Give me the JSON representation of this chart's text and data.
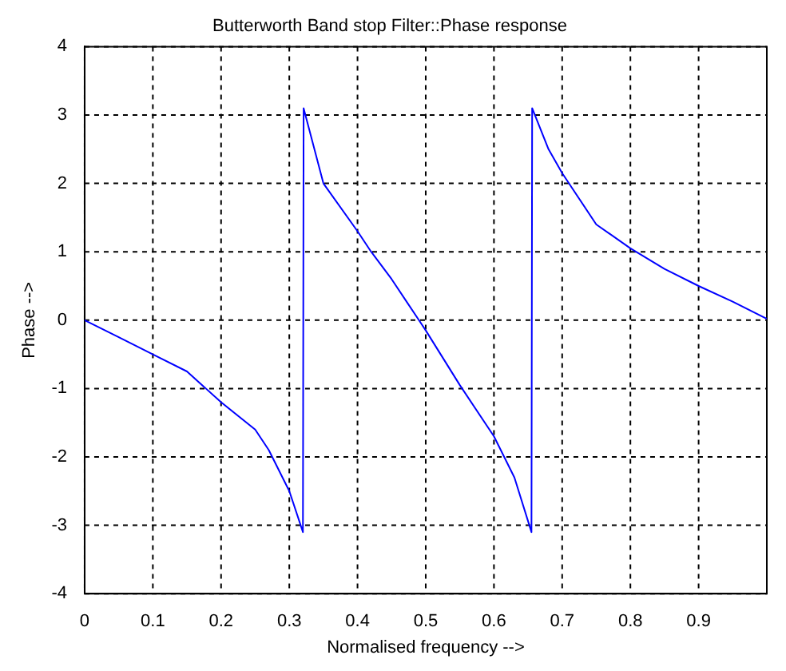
{
  "chart_data": {
    "type": "line",
    "title": "Butterworth Band stop Filter::Phase response",
    "xlabel": "Normalised frequency -->",
    "ylabel": "Phase -->",
    "x": [
      0,
      0.05,
      0.1,
      0.15,
      0.2,
      0.25,
      0.27,
      0.3,
      0.32,
      0.321,
      0.35,
      0.4,
      0.42,
      0.45,
      0.49,
      0.5,
      0.55,
      0.6,
      0.63,
      0.655,
      0.656,
      0.68,
      0.7,
      0.75,
      0.8,
      0.85,
      0.9,
      0.95,
      1
    ],
    "series": [
      {
        "color": "#0000ff",
        "values": [
          0,
          -0.25,
          -0.5,
          -0.75,
          -1.2,
          -1.6,
          -1.9,
          -2.5,
          -3.1,
          3.1,
          2.0,
          1.3,
          1.0,
          0.6,
          0,
          -0.15,
          -0.95,
          -1.7,
          -2.3,
          -3.1,
          3.1,
          2.5,
          2.15,
          1.4,
          1.05,
          0.75,
          0.5,
          0.27,
          0.02
        ]
      }
    ],
    "xlim": [
      0,
      1
    ],
    "xticks": [
      0,
      0.1,
      0.2,
      0.3,
      0.4,
      0.5,
      0.6,
      0.7,
      0.8,
      0.9
    ],
    "ylim": [
      -4,
      4
    ],
    "yticks": [
      -4,
      -3,
      -2,
      -1,
      0,
      1,
      2,
      3,
      4
    ],
    "grid": true,
    "line_style": "solid",
    "marker": "none",
    "legend": false
  }
}
